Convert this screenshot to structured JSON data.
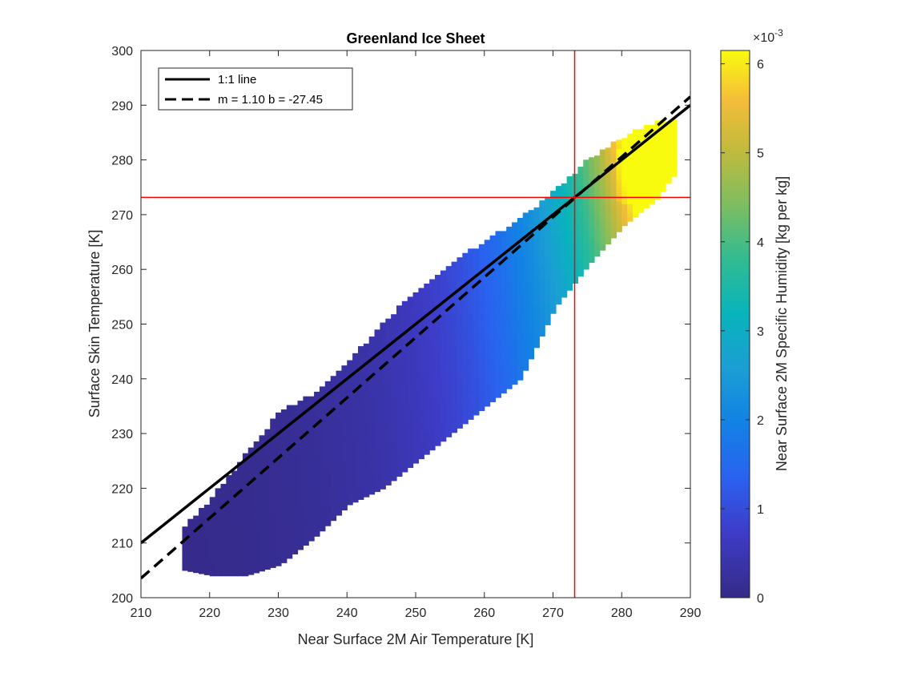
{
  "chart_data": {
    "type": "heatmap",
    "title": "Greenland Ice Sheet",
    "xlabel": "Near Surface 2M Air Temperature [K]",
    "ylabel": "Surface Skin Temperature [K]",
    "xlim": [
      210,
      290
    ],
    "ylim": [
      200,
      300
    ],
    "xticks": [
      210,
      220,
      230,
      240,
      250,
      260,
      270,
      280,
      290
    ],
    "yticks": [
      200,
      210,
      220,
      230,
      240,
      250,
      260,
      270,
      280,
      290,
      300
    ],
    "grid": false,
    "legend_position": "top-left",
    "lines": [
      {
        "name": "1:1 line",
        "style": "solid",
        "color": "#000000",
        "slope": 1.0,
        "intercept": 0.0
      },
      {
        "name": "m = 1.10 b = -27.45",
        "style": "dashed",
        "color": "#000000",
        "slope": 1.1,
        "intercept": -27.45
      }
    ],
    "reference_lines": [
      {
        "orientation": "vertical",
        "value": 273.15,
        "color": "#ff0000"
      },
      {
        "orientation": "horizontal",
        "value": 273.15,
        "color": "#ff0000"
      }
    ],
    "colorbar": {
      "label": "Near Surface 2M Specific Humidity [kg per kg]",
      "scale_label": "×10",
      "scale_exponent": "-3",
      "min": 0,
      "max": 0.00615,
      "ticks": [
        0,
        1,
        2,
        3,
        4,
        5,
        6
      ],
      "colormap": "parula"
    },
    "density_region": {
      "x_bins": [
        {
          "x": 216,
          "y_min": 205,
          "y_max": 213
        },
        {
          "x": 220,
          "y_min": 204,
          "y_max": 218
        },
        {
          "x": 225,
          "y_min": 204,
          "y_max": 226
        },
        {
          "x": 230,
          "y_min": 206,
          "y_max": 234
        },
        {
          "x": 235,
          "y_min": 211,
          "y_max": 237
        },
        {
          "x": 240,
          "y_min": 217,
          "y_max": 243
        },
        {
          "x": 245,
          "y_min": 220,
          "y_max": 250
        },
        {
          "x": 250,
          "y_min": 225,
          "y_max": 256
        },
        {
          "x": 255,
          "y_min": 230,
          "y_max": 261
        },
        {
          "x": 260,
          "y_min": 235,
          "y_max": 265
        },
        {
          "x": 265,
          "y_min": 240,
          "y_max": 269
        },
        {
          "x": 270,
          "y_min": 253,
          "y_max": 274
        },
        {
          "x": 275,
          "y_min": 261,
          "y_max": 280
        },
        {
          "x": 280,
          "y_min": 268,
          "y_max": 284
        },
        {
          "x": 285,
          "y_min": 273,
          "y_max": 287
        },
        {
          "x": 287,
          "y_min": 277,
          "y_max": 287
        }
      ]
    }
  }
}
